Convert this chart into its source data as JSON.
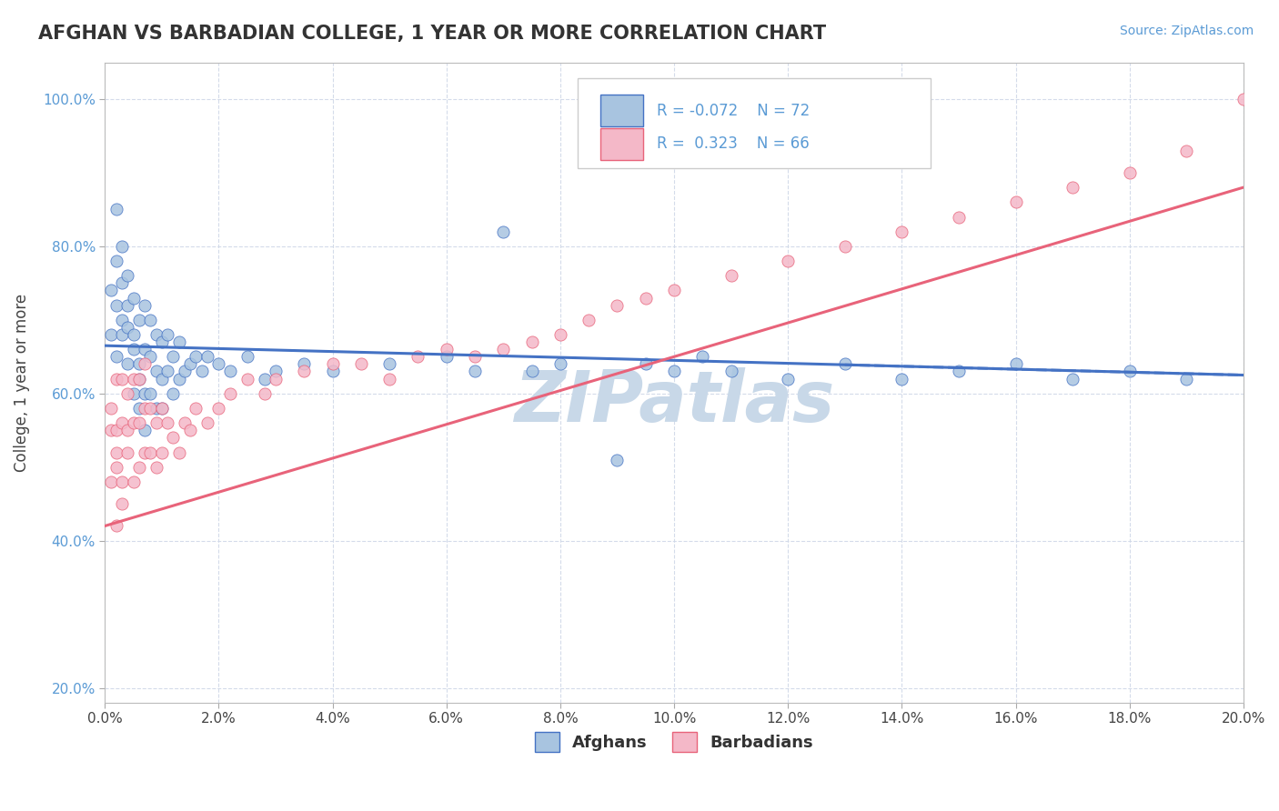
{
  "title": "AFGHAN VS BARBADIAN COLLEGE, 1 YEAR OR MORE CORRELATION CHART",
  "source_text": "Source: ZipAtlas.com",
  "ylabel": "College, 1 year or more",
  "xlim": [
    0.0,
    0.2
  ],
  "ylim": [
    0.18,
    1.05
  ],
  "xtick_labels": [
    "0.0%",
    "2.0%",
    "4.0%",
    "6.0%",
    "8.0%",
    "10.0%",
    "12.0%",
    "14.0%",
    "16.0%",
    "18.0%",
    "20.0%"
  ],
  "xtick_vals": [
    0.0,
    0.02,
    0.04,
    0.06,
    0.08,
    0.1,
    0.12,
    0.14,
    0.16,
    0.18,
    0.2
  ],
  "ytick_labels": [
    "20.0%",
    "40.0%",
    "60.0%",
    "80.0%",
    "100.0%"
  ],
  "ytick_vals": [
    0.2,
    0.4,
    0.6,
    0.8,
    1.0
  ],
  "legend_R_afghan": "-0.072",
  "legend_N_afghan": "72",
  "legend_R_barbadian": "0.323",
  "legend_N_barbadian": "66",
  "afghan_color": "#a8c4e0",
  "barbadian_color": "#f4b8c8",
  "afghan_line_color": "#4472c4",
  "barbadian_line_color": "#e8637a",
  "watermark": "ZIPatlas",
  "watermark_color": "#c8d8e8",
  "background_color": "#ffffff",
  "grid_color": "#d0d8e8",
  "afghan_x": [
    0.001,
    0.001,
    0.002,
    0.002,
    0.002,
    0.002,
    0.003,
    0.003,
    0.003,
    0.003,
    0.004,
    0.004,
    0.004,
    0.004,
    0.005,
    0.005,
    0.005,
    0.005,
    0.006,
    0.006,
    0.006,
    0.006,
    0.007,
    0.007,
    0.007,
    0.007,
    0.008,
    0.008,
    0.008,
    0.009,
    0.009,
    0.009,
    0.01,
    0.01,
    0.01,
    0.011,
    0.011,
    0.012,
    0.012,
    0.013,
    0.013,
    0.014,
    0.015,
    0.016,
    0.017,
    0.018,
    0.02,
    0.022,
    0.025,
    0.028,
    0.03,
    0.035,
    0.04,
    0.05,
    0.06,
    0.065,
    0.07,
    0.075,
    0.08,
    0.09,
    0.095,
    0.1,
    0.105,
    0.11,
    0.12,
    0.13,
    0.14,
    0.15,
    0.16,
    0.17,
    0.18,
    0.19
  ],
  "afghan_y": [
    0.68,
    0.74,
    0.72,
    0.78,
    0.65,
    0.85,
    0.7,
    0.75,
    0.8,
    0.68,
    0.72,
    0.76,
    0.64,
    0.69,
    0.68,
    0.73,
    0.6,
    0.66,
    0.64,
    0.7,
    0.58,
    0.62,
    0.6,
    0.66,
    0.72,
    0.55,
    0.6,
    0.65,
    0.7,
    0.58,
    0.63,
    0.68,
    0.62,
    0.67,
    0.58,
    0.63,
    0.68,
    0.6,
    0.65,
    0.62,
    0.67,
    0.63,
    0.64,
    0.65,
    0.63,
    0.65,
    0.64,
    0.63,
    0.65,
    0.62,
    0.63,
    0.64,
    0.63,
    0.64,
    0.65,
    0.63,
    0.82,
    0.63,
    0.64,
    0.51,
    0.64,
    0.63,
    0.65,
    0.63,
    0.62,
    0.64,
    0.62,
    0.63,
    0.64,
    0.62,
    0.63,
    0.62
  ],
  "barbadian_x": [
    0.001,
    0.001,
    0.001,
    0.002,
    0.002,
    0.002,
    0.002,
    0.002,
    0.003,
    0.003,
    0.003,
    0.003,
    0.004,
    0.004,
    0.004,
    0.005,
    0.005,
    0.005,
    0.006,
    0.006,
    0.006,
    0.007,
    0.007,
    0.007,
    0.008,
    0.008,
    0.009,
    0.009,
    0.01,
    0.01,
    0.011,
    0.012,
    0.013,
    0.014,
    0.015,
    0.016,
    0.018,
    0.02,
    0.022,
    0.025,
    0.028,
    0.03,
    0.035,
    0.04,
    0.045,
    0.05,
    0.055,
    0.06,
    0.065,
    0.07,
    0.075,
    0.08,
    0.085,
    0.09,
    0.095,
    0.1,
    0.11,
    0.12,
    0.13,
    0.14,
    0.15,
    0.16,
    0.17,
    0.18,
    0.19,
    0.2
  ],
  "barbadian_y": [
    0.58,
    0.48,
    0.55,
    0.42,
    0.5,
    0.55,
    0.62,
    0.52,
    0.48,
    0.56,
    0.62,
    0.45,
    0.55,
    0.6,
    0.52,
    0.48,
    0.56,
    0.62,
    0.5,
    0.56,
    0.62,
    0.52,
    0.58,
    0.64,
    0.52,
    0.58,
    0.5,
    0.56,
    0.52,
    0.58,
    0.56,
    0.54,
    0.52,
    0.56,
    0.55,
    0.58,
    0.56,
    0.58,
    0.6,
    0.62,
    0.6,
    0.62,
    0.63,
    0.64,
    0.64,
    0.62,
    0.65,
    0.66,
    0.65,
    0.66,
    0.67,
    0.68,
    0.7,
    0.72,
    0.73,
    0.74,
    0.76,
    0.78,
    0.8,
    0.82,
    0.84,
    0.86,
    0.88,
    0.9,
    0.93,
    1.0
  ],
  "afghan_trend_x0": 0.0,
  "afghan_trend_x1": 0.2,
  "afghan_trend_y0": 0.665,
  "afghan_trend_y1": 0.625,
  "barbadian_trend_x0": 0.0,
  "barbadian_trend_x1": 0.2,
  "barbadian_trend_y0": 0.42,
  "barbadian_trend_y1": 0.88
}
